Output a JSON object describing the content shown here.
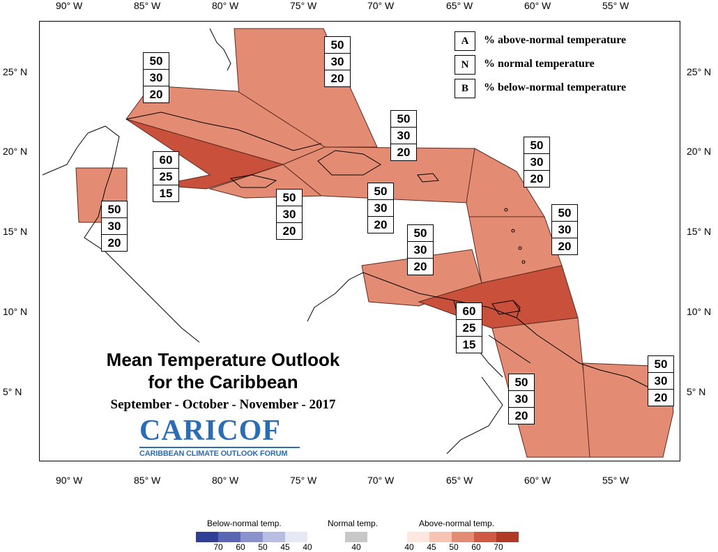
{
  "top_axis": [
    "90° W",
    "85° W",
    "80° W",
    "75° W",
    "70° W",
    "65° W",
    "60° W",
    "55° W"
  ],
  "bottom_axis": [
    "90° W",
    "85° W",
    "80° W",
    "75° W",
    "70° W",
    "65° W",
    "60° W",
    "55° W"
  ],
  "left_axis": [
    "25° N",
    "20° N",
    "15° N",
    "10° N",
    "5° N"
  ],
  "right_axis": [
    "25° N",
    "20° N",
    "15° N",
    "10° N",
    "5° N"
  ],
  "regions": {
    "colors": {
      "p50": "#e48b73",
      "p60": "#c9503a"
    },
    "boxes": [
      {
        "a": "50",
        "n": "30",
        "b": "20"
      },
      {
        "a": "50",
        "n": "30",
        "b": "20"
      },
      {
        "a": "60",
        "n": "25",
        "b": "15"
      },
      {
        "a": "50",
        "n": "30",
        "b": "20"
      },
      {
        "a": "50",
        "n": "30",
        "b": "20"
      },
      {
        "a": "50",
        "n": "30",
        "b": "20"
      },
      {
        "a": "50",
        "n": "30",
        "b": "20"
      },
      {
        "a": "50",
        "n": "30",
        "b": "20"
      },
      {
        "a": "50",
        "n": "30",
        "b": "20"
      },
      {
        "a": "60",
        "n": "25",
        "b": "15"
      },
      {
        "a": "50",
        "n": "30",
        "b": "20"
      },
      {
        "a": "50",
        "n": "30",
        "b": "20"
      }
    ]
  },
  "legend": [
    {
      "key": "A",
      "text": "% above-normal temperature"
    },
    {
      "key": "N",
      "text": "% normal temperature"
    },
    {
      "key": "B",
      "text": "% below-normal temperature"
    }
  ],
  "title": {
    "line1": "Mean Temperature Outlook",
    "line2": "for the Caribbean",
    "season": "September - October - November - 2017"
  },
  "logo": {
    "main": "CARICOF",
    "sub": "CARIBBEAN CLIMATE OUTLOOK FORUM"
  },
  "scale": {
    "below": {
      "title": "Below-normal temp.",
      "labels": [
        "70",
        "60",
        "50",
        "45",
        "40"
      ],
      "colors": [
        "#2f3f96",
        "#5a66b4",
        "#8a92cc",
        "#b8bde2",
        "#e6e8f6"
      ]
    },
    "normal": {
      "title": "Normal temp.",
      "labels": [
        "40"
      ],
      "colors": [
        "#c8c8c8"
      ]
    },
    "above": {
      "title": "Above-normal temp.",
      "labels": [
        "40",
        "45",
        "50",
        "60",
        "70"
      ],
      "colors": [
        "#fde7e0",
        "#f7c3b2",
        "#e48b73",
        "#cf5a43",
        "#b03a25"
      ]
    }
  }
}
